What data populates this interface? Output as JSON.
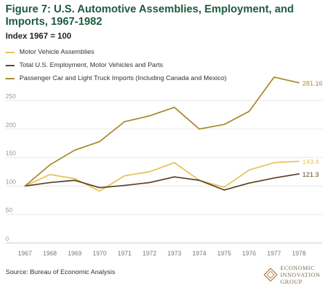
{
  "chart_data": {
    "type": "line",
    "title": "Figure 7: U.S. Automotive Assemblies, Employment, and Imports, 1967-1982",
    "subtitle": "Index 1967 = 100",
    "x": [
      "1967",
      "1968",
      "1969",
      "1970",
      "1971",
      "1972",
      "1973",
      "1974",
      "1975",
      "1976",
      "1977",
      "1978"
    ],
    "ylim": [
      0,
      275
    ],
    "yticks": [
      "0",
      "50",
      "100",
      "150",
      "200",
      "250"
    ],
    "grid": true,
    "legend_position": "top-left",
    "series": [
      {
        "name": "Motor Vehicle Assemblies",
        "color": "#e6c15a",
        "values": [
          100,
          120,
          113,
          91,
          118,
          125,
          141,
          110,
          98,
          128,
          141,
          143.4
        ],
        "end_label": "143.4"
      },
      {
        "name": "Total U.S. Employment, Motor Vehicles and Parts",
        "color": "#5a4420",
        "values": [
          100,
          106,
          110,
          97,
          101,
          106,
          116,
          110,
          93,
          105,
          114,
          121.3
        ],
        "end_label": "121.3"
      },
      {
        "name": "Passenger Car and Light Truck Imports (Including Canada and Mexico)",
        "color": "#a8882c",
        "values": [
          100,
          137,
          163,
          178,
          213,
          223,
          238,
          200,
          208,
          231,
          291,
          281.16
        ],
        "end_label": "281.16"
      }
    ]
  },
  "source": "Source: Bureau of Economic Analysis",
  "logo": {
    "line1": "ECONOMIC",
    "line2": "INNOVATION",
    "line3": "GROUP",
    "icon": "eig-diamond-icon"
  }
}
